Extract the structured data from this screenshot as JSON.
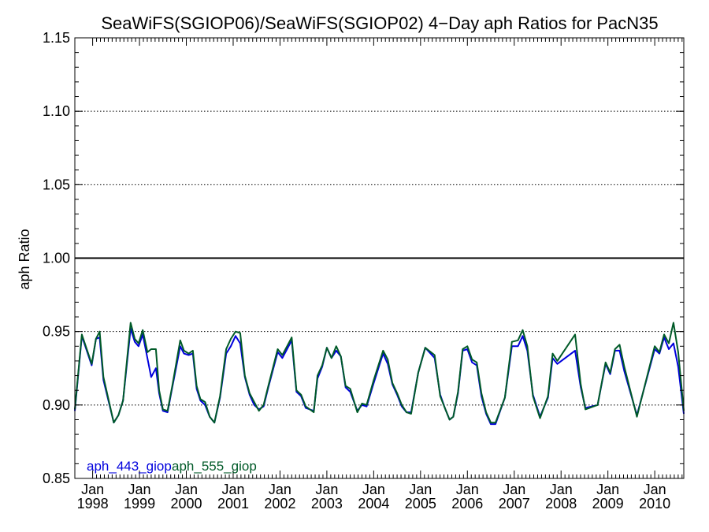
{
  "chart_data": {
    "type": "line",
    "title": "SeaWiFS(SGIOP06)/SeaWiFS(SGIOP02) 4−Day aph Ratios for PacN35",
    "xlabel": "",
    "ylabel": "aph Ratio",
    "xlim": [
      1997.62,
      2010.62
    ],
    "ylim": [
      0.85,
      1.15
    ],
    "yticks": [
      "0.85",
      "0.90",
      "0.95",
      "1.00",
      "1.05",
      "1.10",
      "1.15"
    ],
    "xticks": [
      {
        "year": 1998,
        "month": "Jan",
        "label": "1998"
      },
      {
        "year": 1999,
        "month": "Jan",
        "label": "1999"
      },
      {
        "year": 2000,
        "month": "Jan",
        "label": "2000"
      },
      {
        "year": 2001,
        "month": "Jan",
        "label": "2001"
      },
      {
        "year": 2002,
        "month": "Jan",
        "label": "2002"
      },
      {
        "year": 2003,
        "month": "Jan",
        "label": "2003"
      },
      {
        "year": 2004,
        "month": "Jan",
        "label": "2004"
      },
      {
        "year": 2005,
        "month": "Jan",
        "label": "2005"
      },
      {
        "year": 2006,
        "month": "Jan",
        "label": "2006"
      },
      {
        "year": 2007,
        "month": "Jan",
        "label": "2007"
      },
      {
        "year": 2008,
        "month": "Jan",
        "label": "2008"
      },
      {
        "year": 2009,
        "month": "Jan",
        "label": "2009"
      },
      {
        "year": 2010,
        "month": "Jan",
        "label": "2010"
      }
    ],
    "grid": "dotted horizontal at major y ticks",
    "reference_line": 1.0,
    "legend_position": "bottom-left",
    "series": [
      {
        "name": "aph_443_giop",
        "color": "#0000dd",
        "points": [
          [
            1997.62,
            0.896
          ],
          [
            1997.77,
            0.947
          ],
          [
            1997.98,
            0.927
          ],
          [
            1998.07,
            0.945
          ],
          [
            1998.15,
            0.946
          ],
          [
            1998.23,
            0.917
          ],
          [
            1998.45,
            0.888
          ],
          [
            1998.55,
            0.893
          ],
          [
            1998.65,
            0.903
          ],
          [
            1998.81,
            0.952
          ],
          [
            1998.9,
            0.943
          ],
          [
            1998.98,
            0.94
          ],
          [
            1999.07,
            0.948
          ],
          [
            1999.25,
            0.919
          ],
          [
            1999.35,
            0.925
          ],
          [
            1999.42,
            0.908
          ],
          [
            1999.5,
            0.896
          ],
          [
            1999.6,
            0.895
          ],
          [
            1999.7,
            0.912
          ],
          [
            1999.87,
            0.94
          ],
          [
            1999.95,
            0.935
          ],
          [
            2000.05,
            0.934
          ],
          [
            2000.14,
            0.935
          ],
          [
            2000.22,
            0.911
          ],
          [
            2000.3,
            0.903
          ],
          [
            2000.4,
            0.9
          ],
          [
            2000.5,
            0.892
          ],
          [
            2000.6,
            0.888
          ],
          [
            2000.72,
            0.905
          ],
          [
            2000.85,
            0.935
          ],
          [
            2000.95,
            0.94
          ],
          [
            2001.05,
            0.947
          ],
          [
            2001.15,
            0.942
          ],
          [
            2001.25,
            0.919
          ],
          [
            2001.35,
            0.907
          ],
          [
            2001.45,
            0.9
          ],
          [
            2001.55,
            0.897
          ],
          [
            2001.65,
            0.899
          ],
          [
            2001.75,
            0.912
          ],
          [
            2001.95,
            0.936
          ],
          [
            2002.05,
            0.932
          ],
          [
            2002.15,
            0.938
          ],
          [
            2002.25,
            0.944
          ],
          [
            2002.35,
            0.909
          ],
          [
            2002.45,
            0.906
          ],
          [
            2002.55,
            0.898
          ],
          [
            2002.72,
            0.896
          ],
          [
            2002.8,
            0.918
          ],
          [
            2002.9,
            0.926
          ],
          [
            2003.0,
            0.939
          ],
          [
            2003.1,
            0.932
          ],
          [
            2003.2,
            0.937
          ],
          [
            2003.3,
            0.933
          ],
          [
            2003.4,
            0.912
          ],
          [
            2003.5,
            0.909
          ],
          [
            2003.65,
            0.896
          ],
          [
            2003.75,
            0.9
          ],
          [
            2003.85,
            0.899
          ],
          [
            2004.0,
            0.915
          ],
          [
            2004.2,
            0.935
          ],
          [
            2004.3,
            0.928
          ],
          [
            2004.4,
            0.914
          ],
          [
            2004.5,
            0.907
          ],
          [
            2004.6,
            0.899
          ],
          [
            2004.7,
            0.895
          ],
          [
            2004.8,
            0.895
          ],
          [
            2004.95,
            0.922
          ],
          [
            2005.1,
            0.939
          ],
          [
            2005.3,
            0.932
          ],
          [
            2005.42,
            0.907
          ],
          [
            2005.52,
            0.898
          ],
          [
            2005.62,
            0.89
          ],
          [
            2005.7,
            0.892
          ],
          [
            2005.8,
            0.908
          ],
          [
            2005.9,
            0.937
          ],
          [
            2006.0,
            0.938
          ],
          [
            2006.1,
            0.929
          ],
          [
            2006.2,
            0.927
          ],
          [
            2006.3,
            0.906
          ],
          [
            2006.4,
            0.894
          ],
          [
            2006.5,
            0.887
          ],
          [
            2006.6,
            0.887
          ],
          [
            2006.8,
            0.905
          ],
          [
            2006.95,
            0.94
          ],
          [
            2007.08,
            0.94
          ],
          [
            2007.18,
            0.947
          ],
          [
            2007.28,
            0.937
          ],
          [
            2007.4,
            0.907
          ],
          [
            2007.55,
            0.892
          ],
          [
            2007.72,
            0.905
          ],
          [
            2007.82,
            0.932
          ],
          [
            2007.92,
            0.928
          ],
          [
            2008.3,
            0.937
          ],
          [
            2008.42,
            0.912
          ],
          [
            2008.52,
            0.898
          ],
          [
            2008.78,
            0.9
          ],
          [
            2008.95,
            0.928
          ],
          [
            2009.05,
            0.921
          ],
          [
            2009.15,
            0.937
          ],
          [
            2009.25,
            0.937
          ],
          [
            2009.35,
            0.923
          ],
          [
            2009.62,
            0.893
          ],
          [
            2010.0,
            0.938
          ],
          [
            2010.1,
            0.935
          ],
          [
            2010.2,
            0.946
          ],
          [
            2010.3,
            0.938
          ],
          [
            2010.4,
            0.942
          ],
          [
            2010.5,
            0.926
          ],
          [
            2010.62,
            0.894
          ]
        ]
      },
      {
        "name": "aph_555_giop",
        "color": "#005a28",
        "points": [
          [
            1997.62,
            0.897
          ],
          [
            1997.77,
            0.948
          ],
          [
            1997.98,
            0.928
          ],
          [
            1998.07,
            0.945
          ],
          [
            1998.15,
            0.95
          ],
          [
            1998.23,
            0.919
          ],
          [
            1998.45,
            0.888
          ],
          [
            1998.55,
            0.893
          ],
          [
            1998.65,
            0.903
          ],
          [
            1998.81,
            0.956
          ],
          [
            1998.9,
            0.945
          ],
          [
            1998.98,
            0.942
          ],
          [
            1999.07,
            0.951
          ],
          [
            1999.17,
            0.936
          ],
          [
            1999.25,
            0.938
          ],
          [
            1999.35,
            0.938
          ],
          [
            1999.42,
            0.91
          ],
          [
            1999.5,
            0.897
          ],
          [
            1999.6,
            0.896
          ],
          [
            1999.7,
            0.913
          ],
          [
            1999.87,
            0.944
          ],
          [
            1999.95,
            0.937
          ],
          [
            2000.05,
            0.935
          ],
          [
            2000.14,
            0.937
          ],
          [
            2000.22,
            0.913
          ],
          [
            2000.3,
            0.904
          ],
          [
            2000.4,
            0.902
          ],
          [
            2000.5,
            0.892
          ],
          [
            2000.6,
            0.888
          ],
          [
            2000.72,
            0.906
          ],
          [
            2000.85,
            0.938
          ],
          [
            2000.95,
            0.945
          ],
          [
            2001.05,
            0.95
          ],
          [
            2001.15,
            0.949
          ],
          [
            2001.25,
            0.92
          ],
          [
            2001.35,
            0.908
          ],
          [
            2001.45,
            0.902
          ],
          [
            2001.55,
            0.896
          ],
          [
            2001.65,
            0.9
          ],
          [
            2001.75,
            0.913
          ],
          [
            2001.95,
            0.938
          ],
          [
            2002.05,
            0.934
          ],
          [
            2002.15,
            0.94
          ],
          [
            2002.25,
            0.946
          ],
          [
            2002.35,
            0.91
          ],
          [
            2002.45,
            0.907
          ],
          [
            2002.55,
            0.899
          ],
          [
            2002.72,
            0.895
          ],
          [
            2002.8,
            0.92
          ],
          [
            2002.9,
            0.927
          ],
          [
            2003.0,
            0.939
          ],
          [
            2003.1,
            0.932
          ],
          [
            2003.2,
            0.94
          ],
          [
            2003.3,
            0.933
          ],
          [
            2003.4,
            0.913
          ],
          [
            2003.5,
            0.911
          ],
          [
            2003.65,
            0.895
          ],
          [
            2003.75,
            0.901
          ],
          [
            2003.85,
            0.9
          ],
          [
            2004.0,
            0.917
          ],
          [
            2004.2,
            0.937
          ],
          [
            2004.3,
            0.931
          ],
          [
            2004.4,
            0.915
          ],
          [
            2004.5,
            0.908
          ],
          [
            2004.6,
            0.9
          ],
          [
            2004.7,
            0.895
          ],
          [
            2004.8,
            0.894
          ],
          [
            2004.95,
            0.922
          ],
          [
            2005.1,
            0.939
          ],
          [
            2005.3,
            0.934
          ],
          [
            2005.42,
            0.906
          ],
          [
            2005.52,
            0.898
          ],
          [
            2005.62,
            0.89
          ],
          [
            2005.7,
            0.892
          ],
          [
            2005.8,
            0.909
          ],
          [
            2005.9,
            0.938
          ],
          [
            2006.0,
            0.94
          ],
          [
            2006.1,
            0.931
          ],
          [
            2006.2,
            0.929
          ],
          [
            2006.3,
            0.908
          ],
          [
            2006.4,
            0.895
          ],
          [
            2006.5,
            0.888
          ],
          [
            2006.6,
            0.888
          ],
          [
            2006.8,
            0.905
          ],
          [
            2006.95,
            0.943
          ],
          [
            2007.08,
            0.944
          ],
          [
            2007.18,
            0.951
          ],
          [
            2007.28,
            0.94
          ],
          [
            2007.4,
            0.906
          ],
          [
            2007.55,
            0.891
          ],
          [
            2007.72,
            0.906
          ],
          [
            2007.82,
            0.935
          ],
          [
            2007.92,
            0.93
          ],
          [
            2008.3,
            0.948
          ],
          [
            2008.42,
            0.914
          ],
          [
            2008.52,
            0.897
          ],
          [
            2008.78,
            0.9
          ],
          [
            2008.95,
            0.929
          ],
          [
            2009.05,
            0.922
          ],
          [
            2009.15,
            0.938
          ],
          [
            2009.25,
            0.941
          ],
          [
            2009.35,
            0.926
          ],
          [
            2009.62,
            0.892
          ],
          [
            2010.0,
            0.94
          ],
          [
            2010.1,
            0.936
          ],
          [
            2010.2,
            0.948
          ],
          [
            2010.3,
            0.942
          ],
          [
            2010.4,
            0.956
          ],
          [
            2010.5,
            0.936
          ],
          [
            2010.62,
            0.896
          ]
        ]
      }
    ]
  }
}
